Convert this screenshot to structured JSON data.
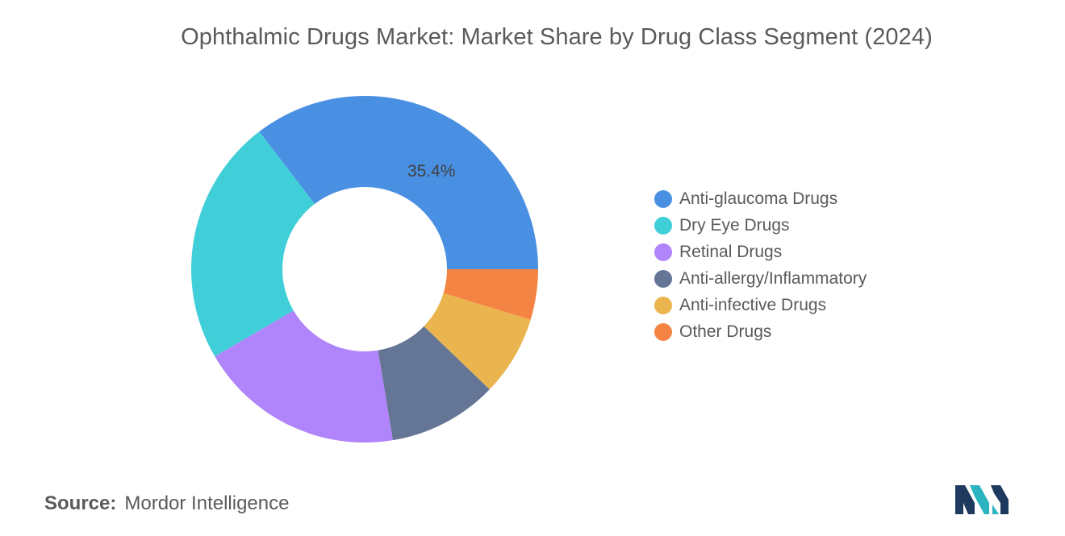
{
  "title": "Ophthalmic Drugs Market: Market Share by Drug Class Segment (2024)",
  "chart_data": {
    "type": "pie",
    "style": "donut",
    "title": "Ophthalmic Drugs Market: Market Share by Drug Class Segment (2024)",
    "unit": "%",
    "legend_position": "right",
    "categories": [
      "Anti-glaucoma Drugs",
      "Dry Eye Drugs",
      "Retinal Drugs",
      "Anti-allergy/Inflammatory",
      "Anti-infective Drugs",
      "Other Drugs"
    ],
    "values": [
      35.4,
      23.0,
      19.2,
      10.2,
      7.5,
      4.7
    ],
    "colors": [
      "#4a90e2",
      "#40cfd9",
      "#b084fa",
      "#647596",
      "#eab54f",
      "#f48443"
    ],
    "data_labels": [
      {
        "category": "Anti-glaucoma Drugs",
        "text": "35.4%"
      }
    ]
  },
  "source": {
    "label": "Source:",
    "value": "Mordor Intelligence"
  },
  "logo": {
    "icon": "mordor-intelligence-logo-icon",
    "colors": [
      "#1f3a5f",
      "#2bb3c0"
    ]
  }
}
